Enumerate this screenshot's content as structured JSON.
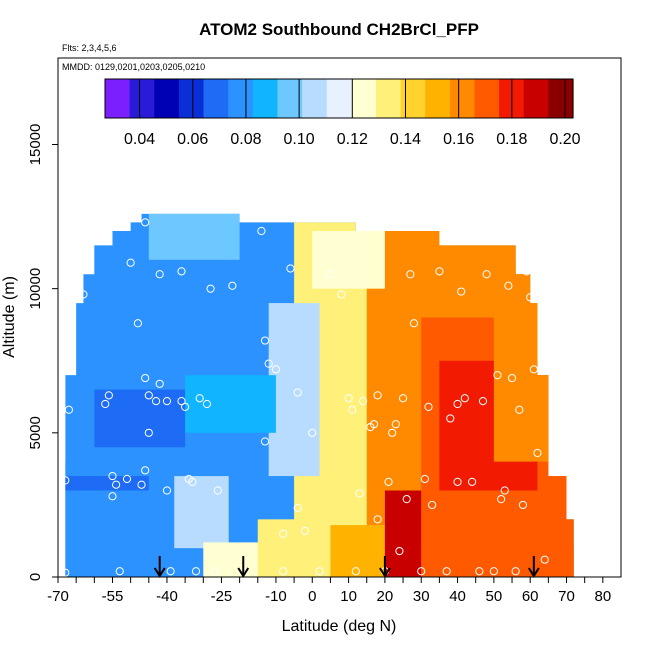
{
  "chart_data": {
    "type": "heatmap",
    "title": "ATOM2 Southbound CH2BrCl_PFP",
    "subtitle_flights": "Flts: 2,3,4,5,6",
    "subtitle_dates": "MMDD: 0129,0201,0203,0205,0210",
    "xlabel": "Latitude (deg N)",
    "ylabel": "Altitude (m)",
    "xlim": [
      -70,
      85
    ],
    "ylim": [
      0,
      18000
    ],
    "x_tick_labels": [
      "-70",
      "-55",
      "-40",
      "-25",
      "-10",
      "0",
      "10",
      "20",
      "30",
      "40",
      "50",
      "60",
      "70",
      "80"
    ],
    "y_tick_labels": [
      "0",
      "5000",
      "10000",
      "15000"
    ],
    "colorbar": {
      "range": [
        0.027,
        0.203
      ],
      "tick_labels": [
        "0.04",
        "0.06",
        "0.08",
        "0.10",
        "0.12",
        "0.14",
        "0.16",
        "0.18",
        "0.20"
      ],
      "colors": [
        "#7b1fff",
        "#2a1bd8",
        "#0000b4",
        "#0a2fd6",
        "#1e6cf6",
        "#2b92ff",
        "#11b4ff",
        "#6cc8ff",
        "#b7dcff",
        "#e8f1ff",
        "#ffffd2",
        "#fff07a",
        "#ffd22e",
        "#ffb200",
        "#ff8a00",
        "#ff5a00",
        "#f21a00",
        "#c80000",
        "#8a0000"
      ]
    },
    "coverage": [
      [
        -68,
        0,
        72,
        2000
      ],
      [
        -68,
        2000,
        70,
        3500
      ],
      [
        -68,
        3500,
        65,
        7000
      ],
      [
        -65,
        7000,
        62,
        9500
      ],
      [
        -63,
        9500,
        60,
        10500
      ],
      [
        -60,
        10500,
        56,
        11500
      ],
      [
        -55,
        11500,
        35,
        12000
      ],
      [
        -50,
        12000,
        12,
        12300
      ],
      [
        -47,
        12300,
        -20,
        12600
      ]
    ],
    "field_patches": [
      [
        -68,
        0,
        72,
        12600,
        0.075
      ],
      [
        -68,
        0,
        72,
        4000,
        0.078
      ],
      [
        -5,
        0,
        72,
        12600,
        0.13
      ],
      [
        15,
        0,
        72,
        12600,
        0.16
      ],
      [
        30,
        0,
        72,
        9000,
        0.175
      ],
      [
        35,
        3000,
        62,
        7500,
        0.18
      ],
      [
        50,
        4000,
        65,
        11000,
        0.165
      ],
      [
        40,
        9000,
        56,
        11500,
        0.16
      ],
      [
        -38,
        1000,
        -23,
        3500,
        0.11
      ],
      [
        -30,
        0,
        -10,
        1200,
        0.12
      ],
      [
        -15,
        0,
        5,
        2000,
        0.13
      ],
      [
        5,
        0,
        20,
        1800,
        0.15
      ],
      [
        20,
        0,
        30,
        3000,
        0.185
      ],
      [
        -12,
        3500,
        2,
        9500,
        0.105
      ],
      [
        -45,
        11000,
        -20,
        12600,
        0.095
      ],
      [
        0,
        10000,
        20,
        12000,
        0.125
      ],
      [
        -68,
        3000,
        -45,
        3500,
        0.07
      ],
      [
        -60,
        4500,
        -35,
        6500,
        0.068
      ],
      [
        -35,
        5000,
        -10,
        7000,
        0.085
      ],
      [
        55,
        0,
        72,
        1000,
        0.17
      ]
    ],
    "sample_points": [
      [
        -68,
        150
      ],
      [
        -68,
        3350
      ],
      [
        -67,
        5800
      ],
      [
        -63,
        9800
      ],
      [
        -57,
        6000
      ],
      [
        -56,
        6300
      ],
      [
        -55,
        3500
      ],
      [
        -55,
        2800
      ],
      [
        -54,
        3200
      ],
      [
        -53,
        200
      ],
      [
        -51,
        3400
      ],
      [
        -50,
        10900
      ],
      [
        -48,
        8800
      ],
      [
        -47,
        3200
      ],
      [
        -46,
        12300
      ],
      [
        -46,
        6900
      ],
      [
        -46,
        3700
      ],
      [
        -45,
        6300
      ],
      [
        -45,
        5000
      ],
      [
        -43,
        6100
      ],
      [
        -42,
        10500
      ],
      [
        -42,
        6700
      ],
      [
        -40,
        3000
      ],
      [
        -40,
        6100
      ],
      [
        -39,
        200
      ],
      [
        -36,
        10600
      ],
      [
        -36,
        6100
      ],
      [
        -35,
        5900
      ],
      [
        -34,
        3400
      ],
      [
        -33,
        3300
      ],
      [
        -32,
        200
      ],
      [
        -31,
        6200
      ],
      [
        -29,
        6000
      ],
      [
        -28,
        10000
      ],
      [
        -27,
        200
      ],
      [
        -26,
        3000
      ],
      [
        -22,
        10100
      ],
      [
        -19,
        200
      ],
      [
        -14,
        12000
      ],
      [
        -13,
        4700
      ],
      [
        -13,
        8200
      ],
      [
        -12,
        7400
      ],
      [
        -10,
        7200
      ],
      [
        -8,
        1500
      ],
      [
        -8,
        200
      ],
      [
        -6,
        10700
      ],
      [
        -4,
        2400
      ],
      [
        -4,
        6400
      ],
      [
        -2,
        1600
      ],
      [
        0,
        5000
      ],
      [
        2,
        200
      ],
      [
        5,
        10500
      ],
      [
        8,
        9800
      ],
      [
        10,
        6200
      ],
      [
        11,
        5800
      ],
      [
        12,
        200
      ],
      [
        13,
        2900
      ],
      [
        14,
        6100
      ],
      [
        16,
        5200
      ],
      [
        17,
        5300
      ],
      [
        18,
        6300
      ],
      [
        18,
        2000
      ],
      [
        20,
        200
      ],
      [
        21,
        3300
      ],
      [
        22,
        5000
      ],
      [
        23,
        5300
      ],
      [
        24,
        900
      ],
      [
        25,
        6200
      ],
      [
        26,
        2700
      ],
      [
        27,
        10500
      ],
      [
        28,
        8800
      ],
      [
        30,
        200
      ],
      [
        31,
        3400
      ],
      [
        32,
        5900
      ],
      [
        33,
        2500
      ],
      [
        35,
        10600
      ],
      [
        37,
        200
      ],
      [
        38,
        5500
      ],
      [
        40,
        3300
      ],
      [
        40,
        6000
      ],
      [
        41,
        9900
      ],
      [
        42,
        6200
      ],
      [
        44,
        3300
      ],
      [
        46,
        200
      ],
      [
        47,
        6100
      ],
      [
        48,
        10500
      ],
      [
        50,
        200
      ],
      [
        51,
        7000
      ],
      [
        52,
        2700
      ],
      [
        53,
        3000
      ],
      [
        54,
        10100
      ],
      [
        55,
        6900
      ],
      [
        56,
        200
      ],
      [
        57,
        5800
      ],
      [
        58,
        2500
      ],
      [
        59,
        10600
      ],
      [
        60,
        9700
      ],
      [
        61,
        7200
      ],
      [
        62,
        4300
      ],
      [
        64,
        600
      ]
    ],
    "flight_markers_lat": [
      -42,
      -19,
      20,
      61
    ]
  }
}
